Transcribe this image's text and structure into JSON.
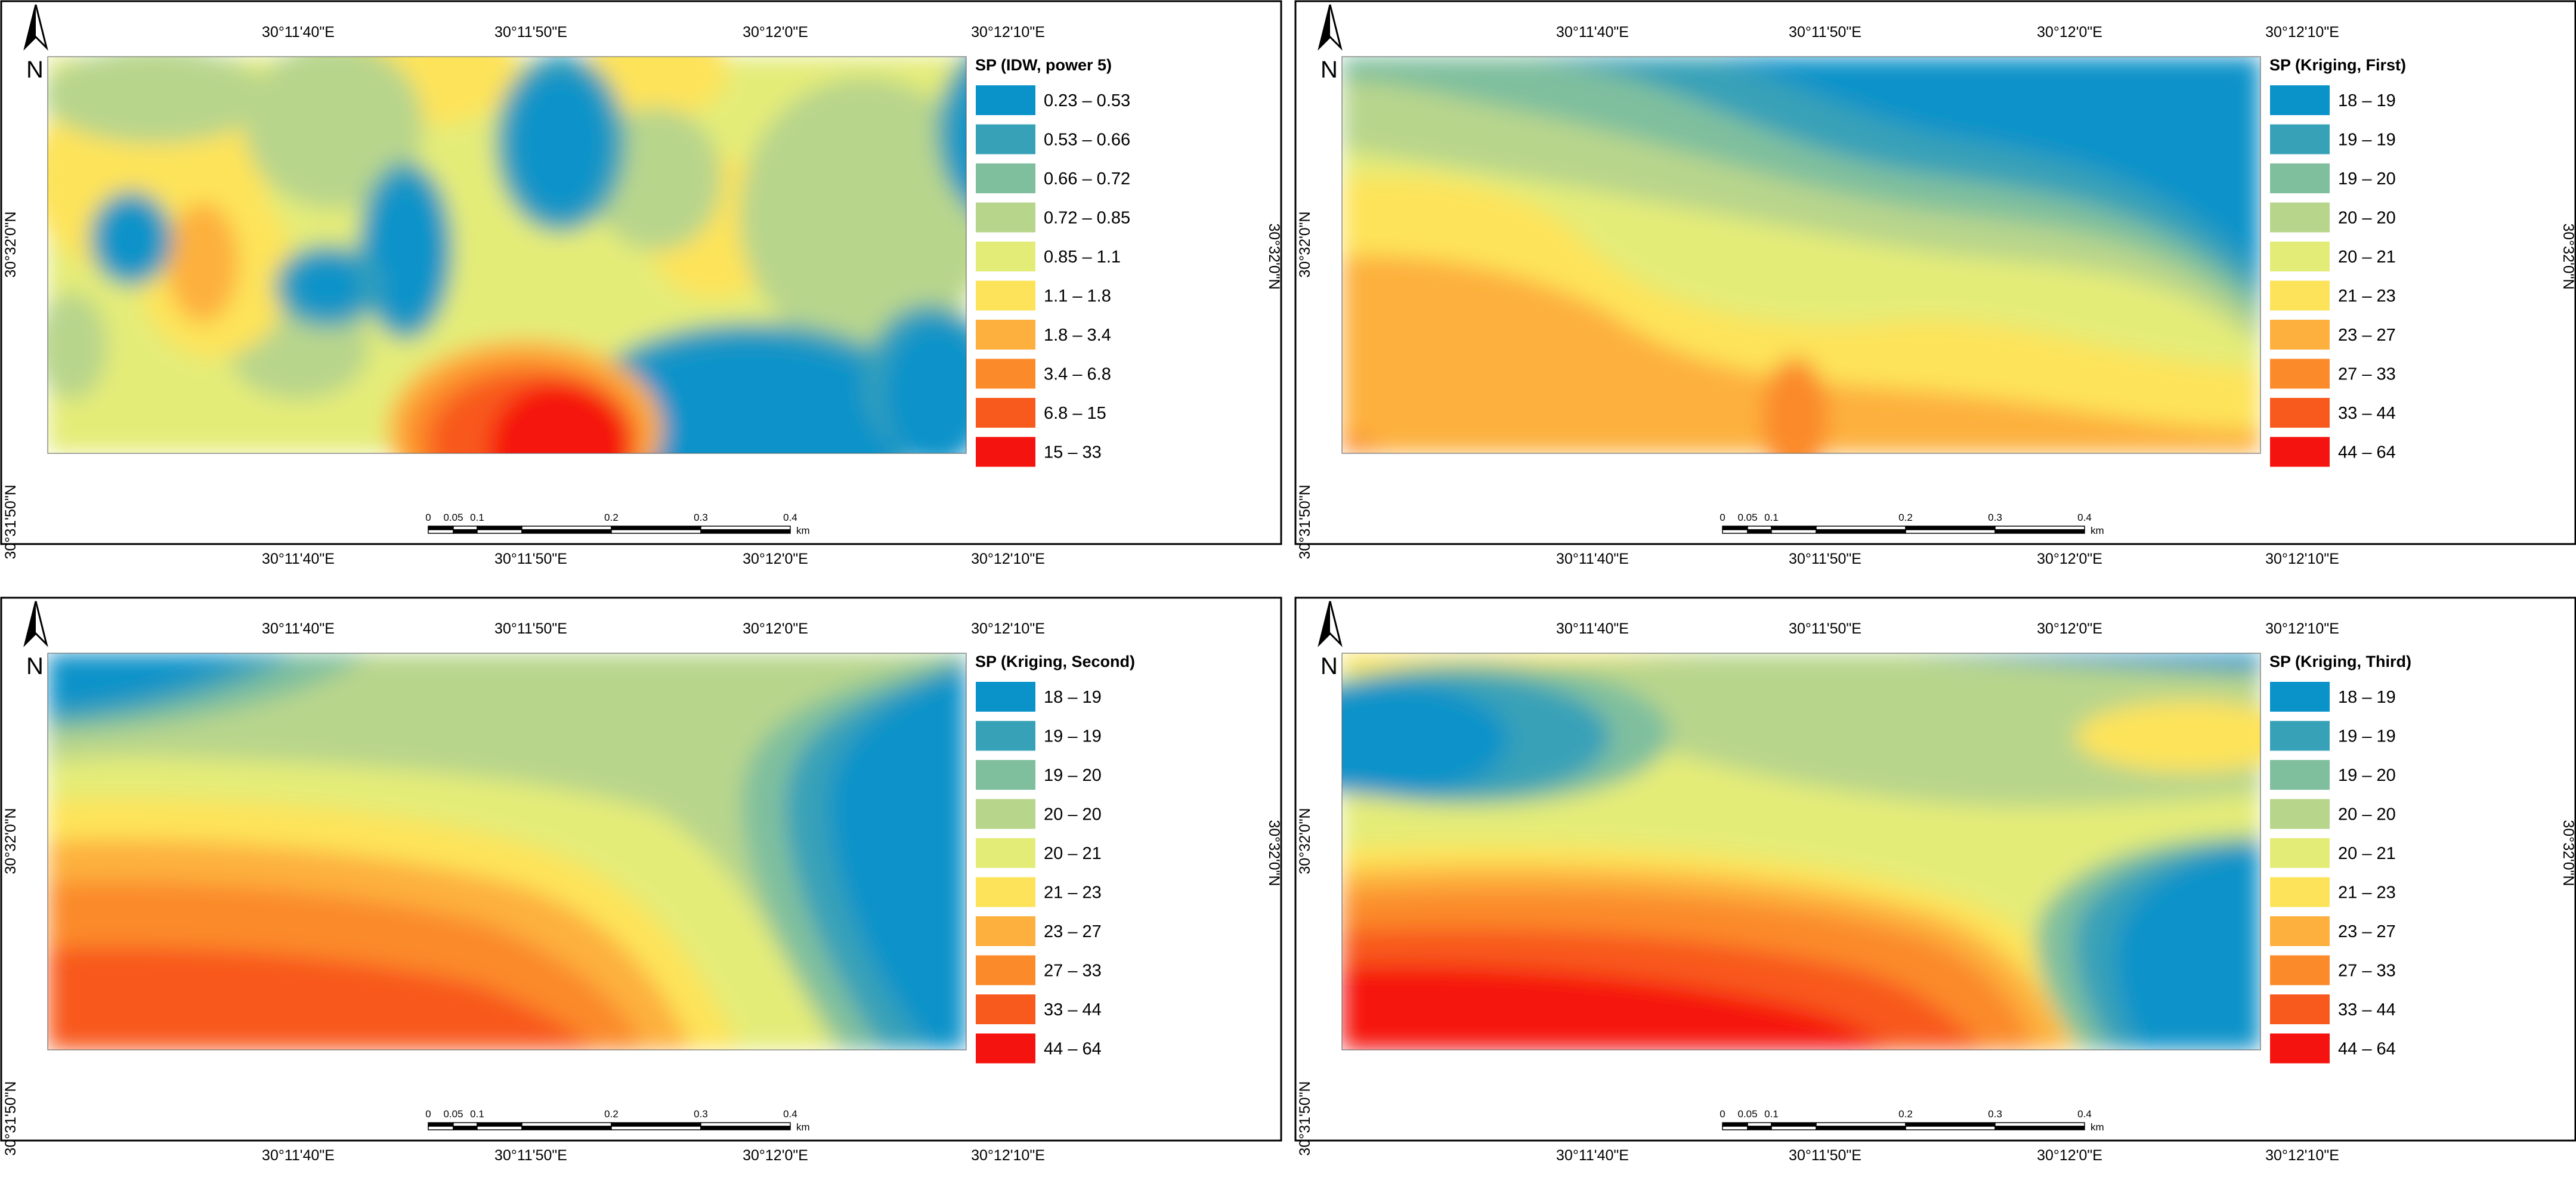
{
  "maps": [
    {
      "legend_title": "SP  (IDW, power 5)",
      "legend_items": [
        {
          "label": "0.23 – 0.53",
          "color": "#0a93c9"
        },
        {
          "label": "0.53 – 0.66",
          "color": "#37a1b8"
        },
        {
          "label": "0.66 – 0.72",
          "color": "#7fbf9e"
        },
        {
          "label": "0.72 – 0.85",
          "color": "#b8d58c"
        },
        {
          "label": "0.85 – 1.1",
          "color": "#e4ec78"
        },
        {
          "label": "1.1 – 1.8",
          "color": "#fde35a"
        },
        {
          "label": "1.8 – 3.4",
          "color": "#fdb03e"
        },
        {
          "label": "3.4 – 6.8",
          "color": "#fb8a2b"
        },
        {
          "label": "6.8 – 15",
          "color": "#f8591d"
        },
        {
          "label": "15 – 33",
          "color": "#f5130f"
        }
      ],
      "top_ticks": [
        "30°11'40\"E",
        "30°11'50\"E",
        "30°12'0\"E",
        "30°12'10\"E"
      ],
      "bottom_ticks": [
        "30°11'40\"E",
        "30°11'50\"E",
        "30°12'0\"E",
        "30°12'10\"E"
      ],
      "left_ticks": [
        "30°32'0\"N",
        "30°31'50\"N"
      ],
      "right_ticks": [
        "30°32'0\"N"
      ]
    },
    {
      "legend_title": "SP (Kriging, First)",
      "legend_items": [
        {
          "label": "18 – 19",
          "color": "#0a93c9"
        },
        {
          "label": "19 – 19",
          "color": "#37a1b8"
        },
        {
          "label": "19 – 20",
          "color": "#7fbf9e"
        },
        {
          "label": "20 – 20",
          "color": "#b8d58c"
        },
        {
          "label": "20 – 21",
          "color": "#e4ec78"
        },
        {
          "label": "21 – 23",
          "color": "#fde35a"
        },
        {
          "label": "23 – 27",
          "color": "#fdb03e"
        },
        {
          "label": "27 – 33",
          "color": "#fb8a2b"
        },
        {
          "label": "33 – 44",
          "color": "#f8591d"
        },
        {
          "label": "44 – 64",
          "color": "#f5130f"
        }
      ],
      "top_ticks": [
        "30°11'40\"E",
        "30°11'50\"E",
        "30°12'0\"E",
        "30°12'10\"E"
      ],
      "bottom_ticks": [
        "30°11'40\"E",
        "30°11'50\"E",
        "30°12'0\"E",
        "30°12'10\"E"
      ],
      "left_ticks": [
        "30°32'0\"N",
        "30°31'50\"N"
      ],
      "right_ticks": [
        "30°32'0\"N"
      ]
    },
    {
      "legend_title": "SP (Kriging, Second)",
      "legend_items": [
        {
          "label": "18 – 19",
          "color": "#0a93c9"
        },
        {
          "label": "19 – 19",
          "color": "#37a1b8"
        },
        {
          "label": "19 – 20",
          "color": "#7fbf9e"
        },
        {
          "label": "20 – 20",
          "color": "#b8d58c"
        },
        {
          "label": "20 – 21",
          "color": "#e4ec78"
        },
        {
          "label": "21 – 23",
          "color": "#fde35a"
        },
        {
          "label": "23 – 27",
          "color": "#fdb03e"
        },
        {
          "label": "27 – 33",
          "color": "#fb8a2b"
        },
        {
          "label": "33 – 44",
          "color": "#f8591d"
        },
        {
          "label": "44 – 64",
          "color": "#f5130f"
        }
      ],
      "top_ticks": [
        "30°11'40\"E",
        "30°11'50\"E",
        "30°12'0\"E",
        "30°12'10\"E"
      ],
      "bottom_ticks": [
        "30°11'40\"E",
        "30°11'50\"E",
        "30°12'0\"E",
        "30°12'10\"E"
      ],
      "left_ticks": [
        "30°32'0\"N",
        "30°31'50\"N"
      ],
      "right_ticks": [
        "30°32'0\"N"
      ]
    },
    {
      "legend_title": "SP (Kriging, Third)",
      "legend_items": [
        {
          "label": "18 – 19",
          "color": "#0a93c9"
        },
        {
          "label": "19 – 19",
          "color": "#37a1b8"
        },
        {
          "label": "19 – 20",
          "color": "#7fbf9e"
        },
        {
          "label": "20 – 20",
          "color": "#b8d58c"
        },
        {
          "label": "20 – 21",
          "color": "#e4ec78"
        },
        {
          "label": "21 – 23",
          "color": "#fde35a"
        },
        {
          "label": "23 – 27",
          "color": "#fdb03e"
        },
        {
          "label": "27 – 33",
          "color": "#fb8a2b"
        },
        {
          "label": "33 – 44",
          "color": "#f8591d"
        },
        {
          "label": "44 – 64",
          "color": "#f5130f"
        }
      ],
      "top_ticks": [
        "30°11'40\"E",
        "30°11'50\"E",
        "30°12'0\"E",
        "30°12'10\"E"
      ],
      "bottom_ticks": [
        "30°11'40\"E",
        "30°11'50\"E",
        "30°12'0\"E",
        "30°12'10\"E"
      ],
      "left_ticks": [
        "30°32'0\"N",
        "30°31'50\"N"
      ],
      "right_ticks": [
        "30°32'0\"N"
      ]
    }
  ],
  "scale_bar": {
    "labels": [
      "0",
      "0.05",
      "0.1",
      "0.2",
      "0.3",
      "0.4"
    ],
    "unit": "km"
  },
  "north_arrow": {
    "letter": "N"
  }
}
